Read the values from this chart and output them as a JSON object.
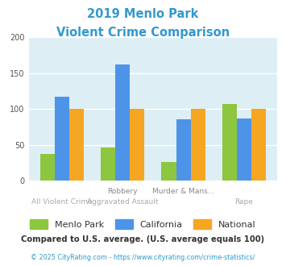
{
  "title_line1": "2019 Menlo Park",
  "title_line2": "Violent Crime Comparison",
  "title_color": "#3399cc",
  "cat_top": [
    "",
    "Robbery",
    "Murder & Mans...",
    ""
  ],
  "cat_bot": [
    "All Violent Crime",
    "Aggravated Assault",
    "",
    "Rape"
  ],
  "menlo_park": [
    38,
    47,
    26,
    107
  ],
  "california": [
    117,
    162,
    86,
    87
  ],
  "national": [
    100,
    100,
    100,
    100
  ],
  "menlo_color": "#8dc63f",
  "california_color": "#4d94e8",
  "national_color": "#f5a623",
  "background_color": "#ddeef5",
  "ylim": [
    0,
    200
  ],
  "yticks": [
    0,
    50,
    100,
    150,
    200
  ],
  "footnote": "Compared to U.S. average. (U.S. average equals 100)",
  "copyright": "© 2025 CityRating.com - https://www.cityrating.com/crime-statistics/",
  "copyright_color": "#3399cc",
  "footnote_color": "#333333",
  "legend_labels": [
    "Menlo Park",
    "California",
    "National"
  ]
}
